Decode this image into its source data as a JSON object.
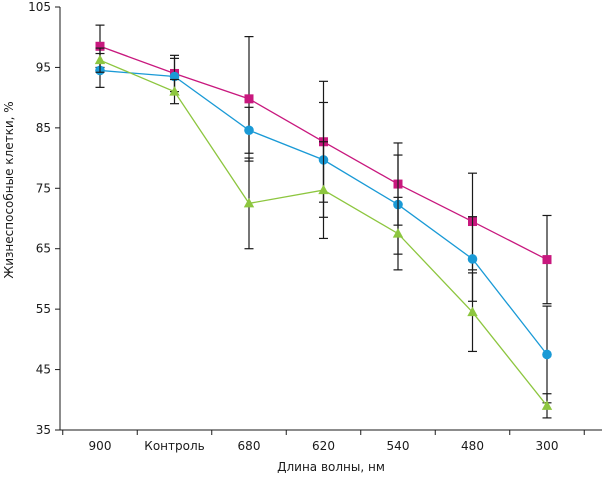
{
  "chart_data": {
    "type": "line",
    "title": "",
    "xlabel": "Длина волны, нм",
    "ylabel": "Жизнеспособные клетки, %",
    "categories": [
      "900",
      "Контроль",
      "680",
      "620",
      "540",
      "480",
      "300"
    ],
    "ylim": [
      35,
      105
    ],
    "yticks": [
      35,
      45,
      55,
      65,
      75,
      85,
      95,
      105
    ],
    "grid": false,
    "series": [
      {
        "name": "magenta-squares",
        "color": "#c8187e",
        "marker": "square",
        "values": [
          98.5,
          94,
          89.8,
          82.7,
          75.7,
          69.5,
          63.2
        ],
        "errors": [
          3.5,
          3,
          10.3,
          10,
          6.8,
          8,
          7.3
        ]
      },
      {
        "name": "blue-circles",
        "color": "#1a9ad6",
        "marker": "circle",
        "values": [
          94.5,
          93.5,
          84.6,
          79.7,
          72.3,
          63.3,
          47.5
        ],
        "errors": [
          2.8,
          3,
          3.8,
          9.5,
          8.2,
          7,
          8
        ]
      },
      {
        "name": "green-triangles",
        "color": "#8dc63f",
        "marker": "triangle",
        "values": [
          96.2,
          91,
          72.5,
          74.7,
          67.5,
          54.5,
          39
        ],
        "errors": [
          2,
          2,
          7.5,
          8,
          6,
          6.5,
          2
        ]
      }
    ]
  }
}
